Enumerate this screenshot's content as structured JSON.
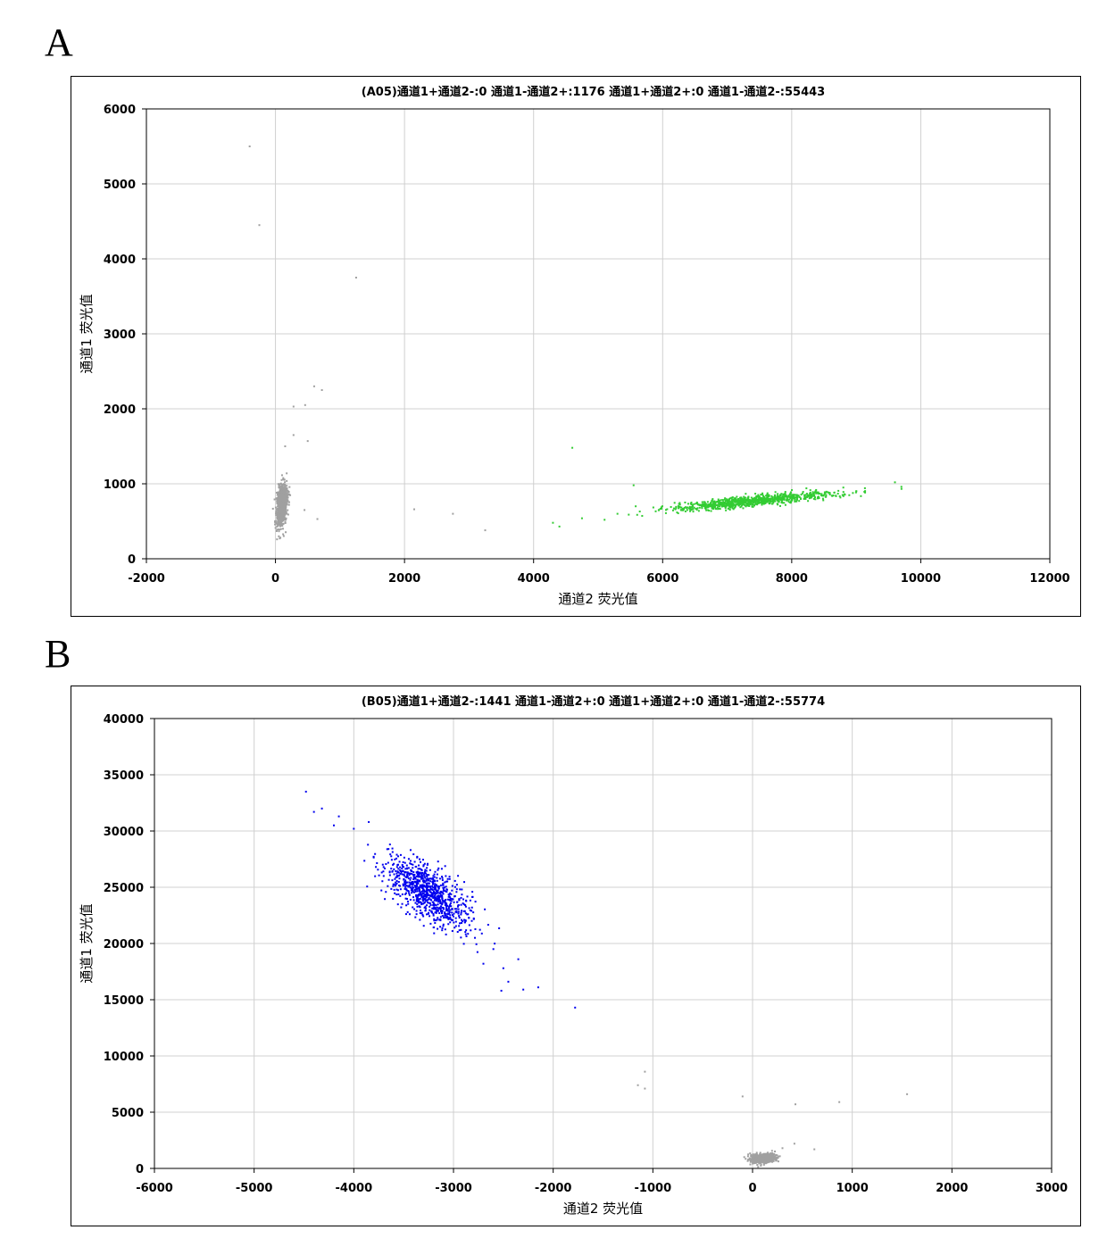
{
  "panels": [
    {
      "label": "A"
    },
    {
      "label": "B"
    }
  ],
  "chart_data": [
    {
      "type": "scatter",
      "title": "(A05)通道1+通道2-:0   通道1-通道2+:1176   通道1+通道2+:0   通道1-通道2-:55443",
      "xlabel": "通道2 荧光值",
      "ylabel": "通道1 荧光值",
      "xlim": [
        -2000,
        12000
      ],
      "ylim": [
        0,
        6000
      ],
      "xticks": [
        "-2000",
        "0",
        "2000",
        "4000",
        "6000",
        "8000",
        "10000",
        "12000"
      ],
      "yticks": [
        "0",
        "1000",
        "2000",
        "3000",
        "4000",
        "5000",
        "6000"
      ],
      "grid": true,
      "clusters": [
        {
          "color": "#a0a0a0",
          "center": [
            100,
            720
          ],
          "sd": [
            40,
            140
          ],
          "corr": 0.3
        },
        {
          "color": "#33cc33",
          "center": [
            7400,
            770
          ],
          "sd": [
            650,
            60
          ],
          "corr": 0.85
        }
      ],
      "points": [
        {
          "x": -400,
          "y": 5500,
          "color": "#a0a0a0"
        },
        {
          "x": -250,
          "y": 4450,
          "color": "#a0a0a0"
        },
        {
          "x": 1250,
          "y": 3750,
          "color": "#a0a0a0"
        },
        {
          "x": 600,
          "y": 2300,
          "color": "#a0a0a0"
        },
        {
          "x": 720,
          "y": 2250,
          "color": "#a0a0a0"
        },
        {
          "x": 280,
          "y": 2030,
          "color": "#a0a0a0"
        },
        {
          "x": 460,
          "y": 2050,
          "color": "#a0a0a0"
        },
        {
          "x": 280,
          "y": 1650,
          "color": "#a0a0a0"
        },
        {
          "x": 500,
          "y": 1570,
          "color": "#a0a0a0"
        },
        {
          "x": 150,
          "y": 1500,
          "color": "#a0a0a0"
        },
        {
          "x": 450,
          "y": 650,
          "color": "#a0a0a0"
        },
        {
          "x": 650,
          "y": 530,
          "color": "#a0a0a0"
        },
        {
          "x": 2150,
          "y": 660,
          "color": "#a0a0a0"
        },
        {
          "x": 2750,
          "y": 600,
          "color": "#a0a0a0"
        },
        {
          "x": 3250,
          "y": 380,
          "color": "#a0a0a0"
        },
        {
          "x": 4600,
          "y": 1480,
          "color": "#33cc33"
        },
        {
          "x": 4300,
          "y": 480,
          "color": "#33cc33"
        },
        {
          "x": 4400,
          "y": 430,
          "color": "#33cc33"
        },
        {
          "x": 4750,
          "y": 540,
          "color": "#33cc33"
        },
        {
          "x": 5100,
          "y": 520,
          "color": "#33cc33"
        },
        {
          "x": 5300,
          "y": 600,
          "color": "#33cc33"
        },
        {
          "x": 5550,
          "y": 980,
          "color": "#33cc33"
        },
        {
          "x": 9600,
          "y": 1020,
          "color": "#33cc33"
        },
        {
          "x": 9700,
          "y": 960,
          "color": "#33cc33"
        },
        {
          "x": 9000,
          "y": 900,
          "color": "#33cc33"
        },
        {
          "x": 8800,
          "y": 950,
          "color": "#33cc33"
        }
      ]
    },
    {
      "type": "scatter",
      "title": "(B05)通道1+通道2-:1441   通道1-通道2+:0   通道1+通道2+:0   通道1-通道2-:55774",
      "xlabel": "通道2 荧光值",
      "ylabel": "通道1 荧光值",
      "xlim": [
        -6000,
        3000
      ],
      "ylim": [
        0,
        40000
      ],
      "xticks": [
        "-6000",
        "-5000",
        "-4000",
        "-3000",
        "-2000",
        "-1000",
        "0",
        "1000",
        "2000",
        "3000"
      ],
      "yticks": [
        "0",
        "5000",
        "10000",
        "15000",
        "20000",
        "25000",
        "30000",
        "35000",
        "40000"
      ],
      "grid": true,
      "clusters": [
        {
          "color": "#0000ee",
          "center": [
            -3250,
            24500
          ],
          "sd": [
            220,
            1600
          ],
          "corr": -0.7
        },
        {
          "color": "#a0a0a0",
          "center": [
            100,
            900
          ],
          "sd": [
            60,
            200
          ],
          "corr": 0.2
        }
      ],
      "points": [
        {
          "x": -4480,
          "y": 33500,
          "color": "#0000ee"
        },
        {
          "x": -4400,
          "y": 31700,
          "color": "#0000ee"
        },
        {
          "x": -4320,
          "y": 32000,
          "color": "#0000ee"
        },
        {
          "x": -4200,
          "y": 30500,
          "color": "#0000ee"
        },
        {
          "x": -4150,
          "y": 31300,
          "color": "#0000ee"
        },
        {
          "x": -4000,
          "y": 30200,
          "color": "#0000ee"
        },
        {
          "x": -3850,
          "y": 30800,
          "color": "#0000ee"
        },
        {
          "x": -2600,
          "y": 19500,
          "color": "#0000ee"
        },
        {
          "x": -2700,
          "y": 18200,
          "color": "#0000ee"
        },
        {
          "x": -2500,
          "y": 17800,
          "color": "#0000ee"
        },
        {
          "x": -2350,
          "y": 18600,
          "color": "#0000ee"
        },
        {
          "x": -2450,
          "y": 16600,
          "color": "#0000ee"
        },
        {
          "x": -2520,
          "y": 15800,
          "color": "#0000ee"
        },
        {
          "x": -2300,
          "y": 15900,
          "color": "#0000ee"
        },
        {
          "x": -2150,
          "y": 16100,
          "color": "#0000ee"
        },
        {
          "x": -1780,
          "y": 14300,
          "color": "#0000ee"
        },
        {
          "x": -1080,
          "y": 8600,
          "color": "#a0a0a0"
        },
        {
          "x": -1150,
          "y": 7400,
          "color": "#a0a0a0"
        },
        {
          "x": -1080,
          "y": 7100,
          "color": "#a0a0a0"
        },
        {
          "x": -100,
          "y": 6400,
          "color": "#a0a0a0"
        },
        {
          "x": 430,
          "y": 5700,
          "color": "#a0a0a0"
        },
        {
          "x": 870,
          "y": 5900,
          "color": "#a0a0a0"
        },
        {
          "x": 1550,
          "y": 6600,
          "color": "#a0a0a0"
        },
        {
          "x": 420,
          "y": 2200,
          "color": "#a0a0a0"
        },
        {
          "x": 620,
          "y": 1700,
          "color": "#a0a0a0"
        },
        {
          "x": 300,
          "y": 1800,
          "color": "#a0a0a0"
        }
      ]
    }
  ]
}
